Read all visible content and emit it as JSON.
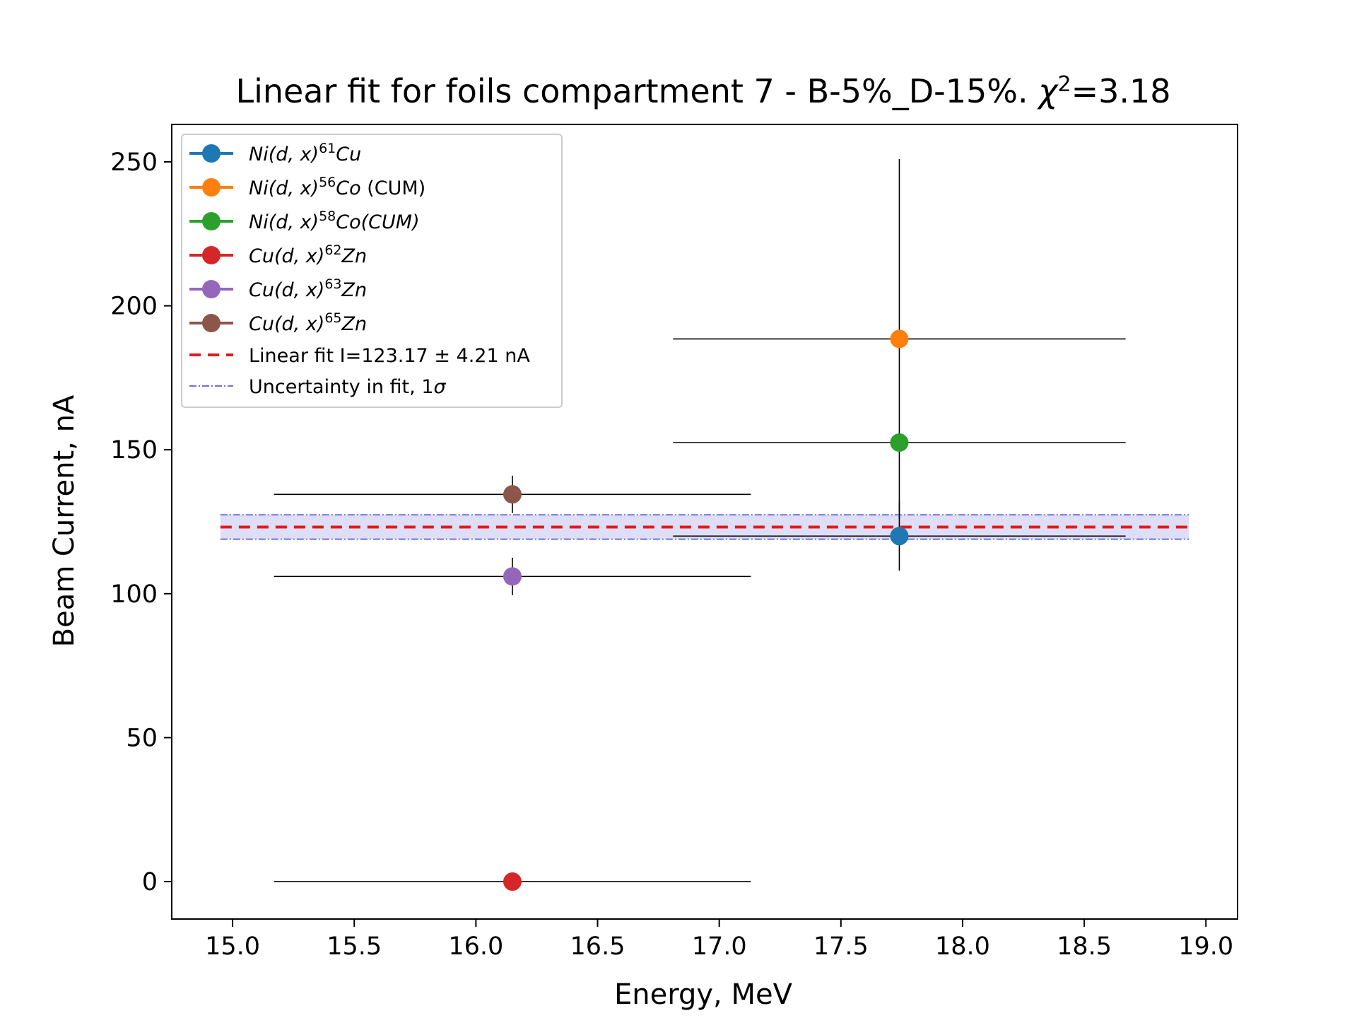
{
  "chart_data": {
    "type": "scatter",
    "title": "Linear fit for foils compartment 7 - B-5%_D-15%. χ²=3.18",
    "title_parts": {
      "main": "Linear fit for foils compartment 7 - B-5%_D-15%. ",
      "chi": "χ",
      "chi_sup": "2",
      "chi_value": "=3.18"
    },
    "xlabel": "Energy, MeV",
    "ylabel": "Beam Current, nA",
    "xlim": [
      14.75,
      19.13
    ],
    "ylim": [
      -13,
      263
    ],
    "xticks": [
      15.0,
      15.5,
      16.0,
      16.5,
      17.0,
      17.5,
      18.0,
      18.5,
      19.0
    ],
    "xtick_labels": [
      "15.0",
      "15.5",
      "16.0",
      "16.5",
      "17.0",
      "17.5",
      "18.0",
      "18.5",
      "19.0"
    ],
    "yticks": [
      0,
      50,
      100,
      150,
      200,
      250
    ],
    "ytick_labels": [
      "0",
      "50",
      "100",
      "150",
      "200",
      "250"
    ],
    "grid": false,
    "legend_position": "top-left",
    "series": [
      {
        "name": "Ni(d,x)⁶¹Cu",
        "label_parts": {
          "a": "Ni(d, x)",
          "sup": "61",
          "b": "Cu",
          "suffix": ""
        },
        "color": "#1f77b4",
        "x": 17.74,
        "y": 120,
        "xerr": 0.93,
        "yerr": 12
      },
      {
        "name": "Ni(d,x)⁵⁶Co (CUM)",
        "label_parts": {
          "a": "Ni(d, x)",
          "sup": "56",
          "b": "Co",
          "suffix": " (CUM)"
        },
        "color": "#ff7f0e",
        "x": 17.74,
        "y": 188.5,
        "xerr": 0.93,
        "yerr": 62.5
      },
      {
        "name": "Ni(d,x)⁵⁸Co(CUM)",
        "label_parts": {
          "a": "Ni(d, x)",
          "sup": "58",
          "b": "Co(CUM)",
          "suffix": ""
        },
        "color": "#2ca02c",
        "x": 17.74,
        "y": 152.5,
        "xerr": 0.93,
        "yerr": 0
      },
      {
        "name": "Cu(d,x)⁶²Zn",
        "label_parts": {
          "a": "Cu(d, x)",
          "sup": "62",
          "b": "Zn",
          "suffix": ""
        },
        "color": "#d62728",
        "x": 16.15,
        "y": 0,
        "xerr": 0.98,
        "yerr": 0
      },
      {
        "name": "Cu(d,x)⁶³Zn",
        "label_parts": {
          "a": "Cu(d, x)",
          "sup": "63",
          "b": "Zn",
          "suffix": ""
        },
        "color": "#9467bd",
        "x": 16.15,
        "y": 106,
        "xerr": 0.98,
        "yerr": 6.5
      },
      {
        "name": "Cu(d,x)⁶⁵Zn",
        "label_parts": {
          "a": "Cu(d, x)",
          "sup": "65",
          "b": "Zn",
          "suffix": ""
        },
        "color": "#8c564b",
        "x": 16.15,
        "y": 134.5,
        "xerr": 0.98,
        "yerr": 6.5
      }
    ],
    "fit": {
      "label": "Linear fit I=123.17 ± 4.21 nA",
      "value": 123.17,
      "uncertainty": 4.21,
      "x_range": [
        14.95,
        18.93
      ],
      "color": "#e31a1c"
    },
    "uncertainty_band": {
      "label": "Uncertainty in fit, 1σ",
      "label_parts": {
        "a": "Uncertainty in fit, 1",
        "sym": "σ"
      },
      "color": "#3f3fd6",
      "fill": "#d6d6f5"
    }
  }
}
